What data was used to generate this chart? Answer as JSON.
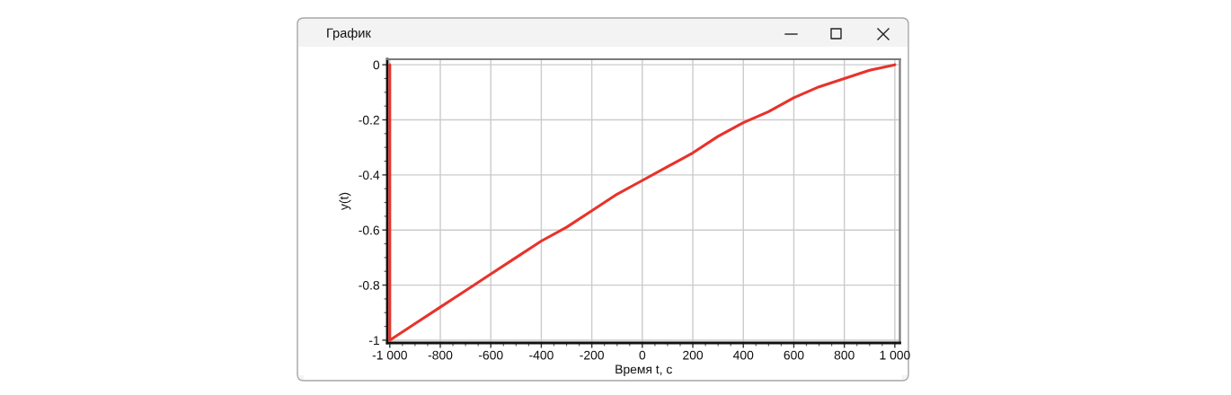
{
  "chart_data": {
    "type": "line",
    "title": "График",
    "xlabel": "Время t, с",
    "ylabel": "y(t)",
    "x": [
      -1000,
      -1000,
      -900,
      -800,
      -700,
      -600,
      -500,
      -400,
      -300,
      -200,
      -100,
      0,
      100,
      200,
      300,
      400,
      500,
      600,
      700,
      800,
      900,
      1000
    ],
    "series": [
      {
        "color": "#e8332b",
        "values": [
          0,
          -1,
          -0.94,
          -0.88,
          -0.82,
          -0.76,
          -0.7,
          -0.64,
          -0.59,
          -0.53,
          -0.47,
          -0.42,
          -0.37,
          -0.32,
          -0.26,
          -0.21,
          -0.17,
          -0.12,
          -0.08,
          -0.05,
          -0.02,
          0
        ]
      }
    ],
    "xlim": [
      -1010,
      1020
    ],
    "ylim": [
      -1.01,
      0.02
    ],
    "xticks": [
      {
        "value": -1000,
        "label": "-1 000"
      },
      -800,
      -600,
      -400,
      -200,
      0,
      200,
      400,
      600,
      800,
      {
        "value": 1000,
        "label": "1 000"
      }
    ],
    "yticks": [
      -1,
      -0.8,
      -0.6,
      -0.4,
      -0.2,
      0
    ],
    "grid": true
  }
}
